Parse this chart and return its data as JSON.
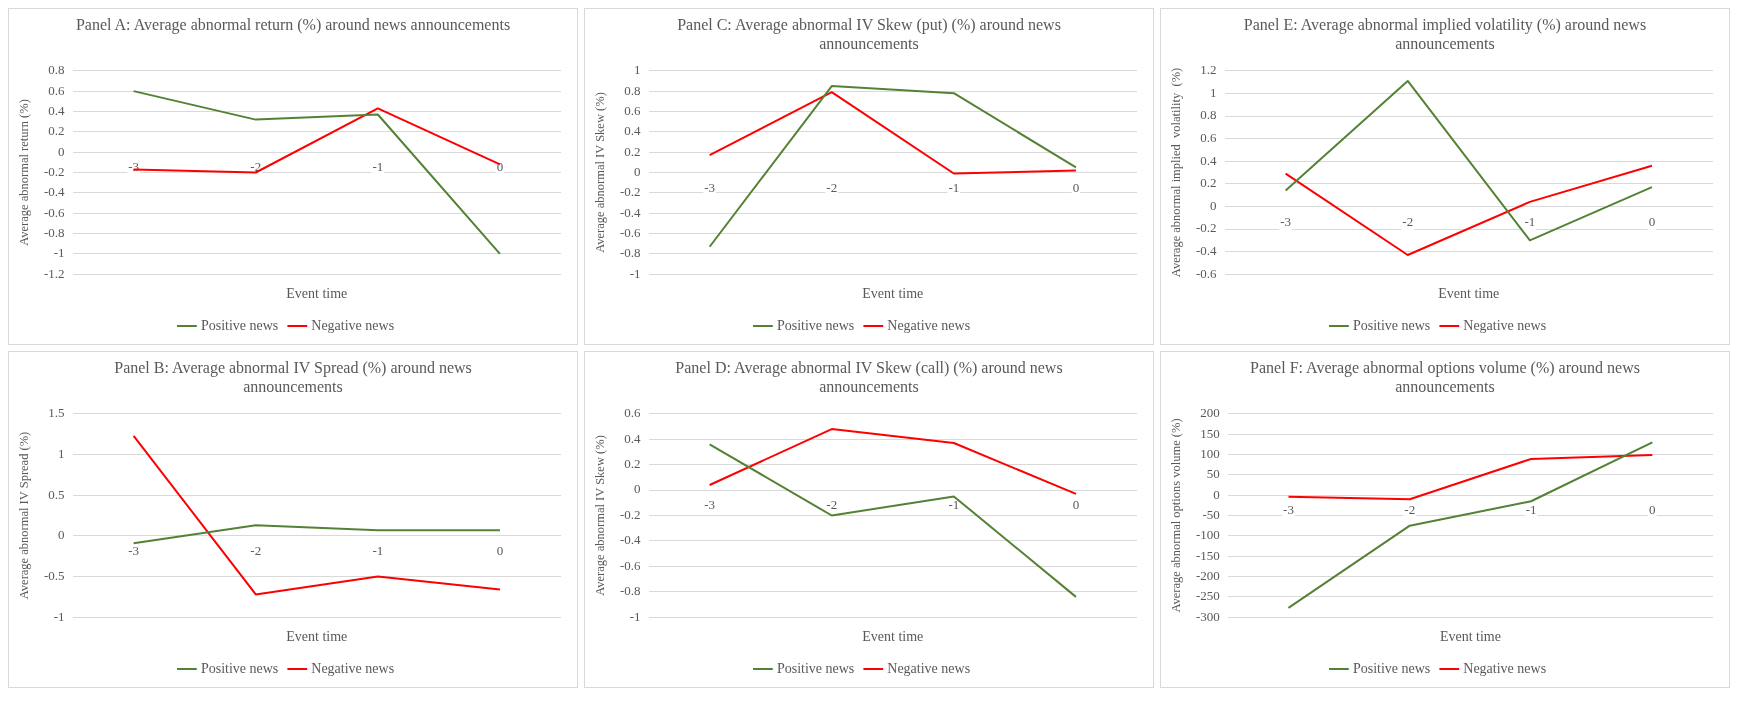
{
  "chart_data": [
    {
      "type": "line",
      "title": "Panel A: Average abnormal return (%) around news announcements",
      "xlabel": "Event time",
      "ylabel": "Average abnormal return (%)",
      "categories": [
        "-3",
        "-2",
        "-1",
        "0"
      ],
      "ylim": [
        -1.2,
        0.8
      ],
      "yticks": [
        -1.2,
        -1,
        -0.8,
        -0.6,
        -0.4,
        -0.2,
        0,
        0.2,
        0.4,
        0.6,
        0.8
      ],
      "grid": "y",
      "legend": "bottom",
      "marker": "none",
      "series": [
        {
          "name": "Positive news",
          "color": "#548235",
          "values": [
            0.6,
            0.32,
            0.37,
            -1.0
          ]
        },
        {
          "name": "Negative news",
          "color": "#ff0000",
          "values": [
            -0.17,
            -0.2,
            0.43,
            -0.12
          ]
        }
      ]
    },
    {
      "type": "line",
      "title": "Panel C: Average abnormal IV Skew (put) (%) around news announcements",
      "xlabel": "Event time",
      "ylabel": "Average abnormal IV Skew (%)",
      "categories": [
        "-3",
        "-2",
        "-1",
        "0"
      ],
      "ylim": [
        -1,
        1
      ],
      "yticks": [
        -1,
        -0.8,
        -0.6,
        -0.4,
        -0.2,
        0,
        0.2,
        0.4,
        0.6,
        0.8,
        1
      ],
      "grid": "y",
      "legend": "bottom",
      "marker": "none",
      "series": [
        {
          "name": "Positive news",
          "color": "#548235",
          "values": [
            -0.73,
            0.85,
            0.78,
            0.05
          ]
        },
        {
          "name": "Negative news",
          "color": "#ff0000",
          "values": [
            0.17,
            0.79,
            -0.01,
            0.02
          ]
        }
      ]
    },
    {
      "type": "line",
      "title": "Panel E: Average abnormal implied volatility (%) around news announcements",
      "xlabel": "Event time",
      "ylabel": "Average abnormal implied  volatility  (%)",
      "categories": [
        "-3",
        "-2",
        "-1",
        "0"
      ],
      "ylim": [
        -0.6,
        1.2
      ],
      "yticks": [
        -0.6,
        -0.4,
        -0.2,
        0,
        0.2,
        0.4,
        0.6,
        0.8,
        1,
        1.2
      ],
      "grid": "y",
      "legend": "bottom",
      "marker": "none",
      "series": [
        {
          "name": "Positive news",
          "color": "#548235",
          "values": [
            0.14,
            1.11,
            -0.3,
            0.17
          ]
        },
        {
          "name": "Negative news",
          "color": "#ff0000",
          "values": [
            0.29,
            -0.43,
            0.04,
            0.36
          ]
        }
      ]
    },
    {
      "type": "line",
      "title": "Panel B: Average abnormal IV Spread (%) around news announcements",
      "xlabel": "Event time",
      "ylabel": "Average abnormal IV Spread (%)",
      "categories": [
        "-3",
        "-2",
        "-1",
        "0"
      ],
      "ylim": [
        -1,
        1.5
      ],
      "yticks": [
        -1,
        -0.5,
        0,
        0.5,
        1,
        1.5
      ],
      "grid": "y",
      "legend": "bottom",
      "marker": "none",
      "series": [
        {
          "name": "Positive news",
          "color": "#548235",
          "values": [
            -0.09,
            0.13,
            0.07,
            0.07
          ]
        },
        {
          "name": "Negative news",
          "color": "#ff0000",
          "values": [
            1.23,
            -0.72,
            -0.5,
            -0.66
          ]
        }
      ]
    },
    {
      "type": "line",
      "title": "Panel D: Average abnormal IV Skew (call) (%) around news announcements",
      "xlabel": "Event time",
      "ylabel": "Average abnormal IV Skew (%)",
      "categories": [
        "-3",
        "-2",
        "-1",
        "0"
      ],
      "ylim": [
        -1,
        0.6
      ],
      "yticks": [
        -1,
        -0.8,
        -0.6,
        -0.4,
        -0.2,
        0,
        0.2,
        0.4,
        0.6
      ],
      "grid": "y",
      "legend": "bottom",
      "marker": "none",
      "series": [
        {
          "name": "Positive news",
          "color": "#548235",
          "values": [
            0.36,
            -0.2,
            -0.05,
            -0.84
          ]
        },
        {
          "name": "Negative news",
          "color": "#ff0000",
          "values": [
            0.04,
            0.48,
            0.37,
            -0.03
          ]
        }
      ]
    },
    {
      "type": "line",
      "title": "Panel F: Average abnormal options volume (%) around news announcements",
      "xlabel": "Event time",
      "ylabel": "Average abnormal options volume (%)",
      "categories": [
        "-3",
        "-2",
        "-1",
        "0"
      ],
      "ylim": [
        -300,
        200
      ],
      "yticks": [
        -300,
        -250,
        -200,
        -150,
        -100,
        -50,
        0,
        50,
        100,
        150,
        200
      ],
      "grid": "y",
      "legend": "bottom",
      "marker": "none",
      "series": [
        {
          "name": "Positive news",
          "color": "#548235",
          "values": [
            -277,
            -75,
            -15,
            130
          ]
        },
        {
          "name": "Negative news",
          "color": "#ff0000",
          "values": [
            -4,
            -10,
            89,
            99
          ]
        }
      ]
    }
  ]
}
